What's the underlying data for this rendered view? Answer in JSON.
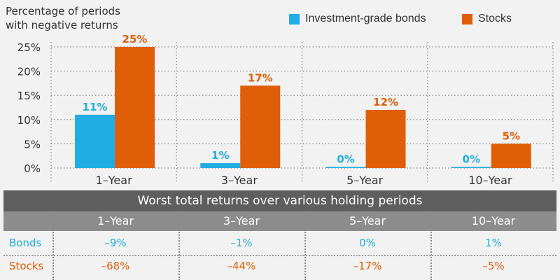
{
  "chart_data": {
    "type": "bar",
    "title": "",
    "ylabel": "Percentage of periods with negative returns",
    "ylabel_lines": [
      "Percentage of periods",
      "with negative returns"
    ],
    "categories": [
      "1–Year",
      "3–Year",
      "5–Year",
      "10–Year"
    ],
    "series": [
      {
        "name": "Investment-grade bonds",
        "color": "#1fade3",
        "values": [
          11,
          1,
          0,
          0
        ],
        "labels": [
          "11%",
          "1%",
          "0%",
          "0%"
        ]
      },
      {
        "name": "Stocks",
        "color": "#e05e07",
        "values": [
          25,
          17,
          12,
          5
        ],
        "labels": [
          "25%",
          "17%",
          "12%",
          "5%"
        ]
      }
    ],
    "ylim": [
      0,
      25
    ],
    "yticks": [
      0,
      5,
      10,
      15,
      20,
      25
    ],
    "ytick_labels": [
      "0%",
      "5%",
      "10%",
      "15%",
      "20%",
      "25%"
    ],
    "grid": true,
    "legend": "top-right"
  },
  "table": {
    "title": "Worst total returns over various holding periods",
    "columns": [
      "1–Year",
      "3–Year",
      "5–Year",
      "10–Year"
    ],
    "rows": [
      {
        "label": "Bonds",
        "color": "#1fade3",
        "values": [
          "–9%",
          "–1%",
          "0%",
          "1%"
        ]
      },
      {
        "label": "Stocks",
        "color": "#e05e07",
        "values": [
          "–68%",
          "–44%",
          "–17%",
          "–5%"
        ]
      }
    ]
  }
}
